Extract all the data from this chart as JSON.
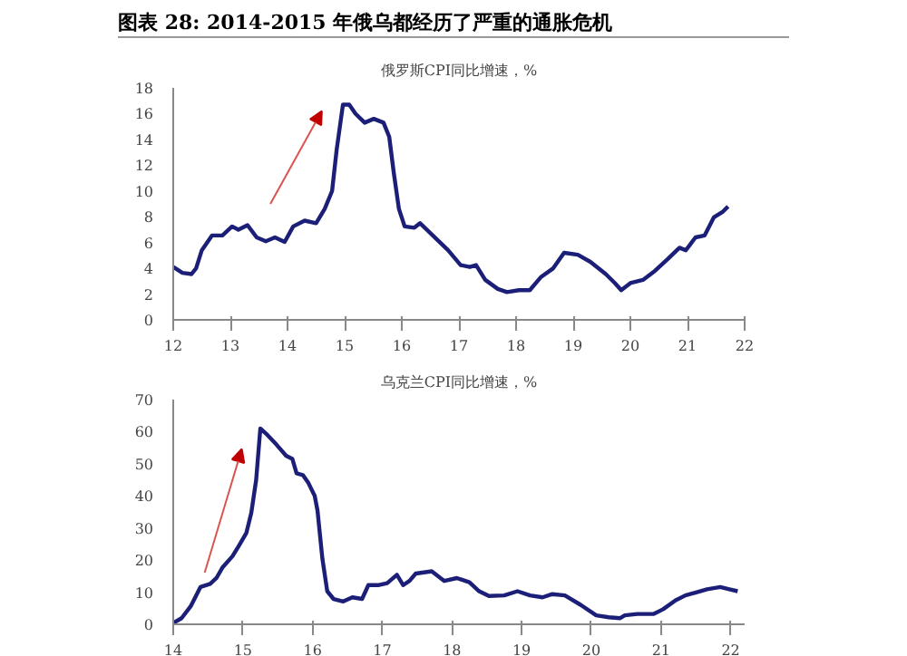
{
  "chart_data": [
    {
      "type": "line",
      "title": "图表 28: 2014-2015 年俄乌都经历了严重的通胀危机",
      "subtitle": "俄罗斯CPI同比增速，%",
      "x": [
        12.0,
        12.16,
        12.32,
        12.4,
        12.5,
        12.68,
        12.86,
        13.03,
        13.14,
        13.3,
        13.46,
        13.62,
        13.78,
        13.95,
        14.1,
        14.3,
        14.5,
        14.65,
        14.78,
        14.86,
        14.97,
        15.08,
        15.19,
        15.35,
        15.51,
        15.68,
        15.78,
        15.86,
        15.95,
        16.05,
        16.22,
        16.32,
        16.6,
        16.81,
        17.03,
        17.19,
        17.3,
        17.46,
        17.68,
        17.84,
        18.05,
        18.24,
        18.43,
        18.65,
        18.84,
        19.08,
        19.3,
        19.57,
        19.73,
        19.84,
        20.0,
        20.22,
        20.43,
        20.65,
        20.86,
        20.97,
        21.14,
        21.3,
        21.46,
        21.62,
        21.71
      ],
      "series": [
        {
          "color": "#1c1f78",
          "values": [
            4.1,
            3.65,
            3.55,
            4.0,
            5.4,
            6.55,
            6.55,
            7.25,
            7.0,
            7.35,
            6.4,
            6.1,
            6.4,
            6.05,
            7.25,
            7.7,
            7.5,
            8.6,
            10.0,
            13.2,
            16.7,
            16.7,
            16.0,
            15.3,
            15.6,
            15.3,
            14.2,
            11.4,
            8.6,
            7.25,
            7.15,
            7.5,
            6.3,
            5.4,
            4.25,
            4.1,
            4.25,
            3.1,
            2.4,
            2.15,
            2.3,
            2.3,
            3.3,
            4.0,
            5.2,
            5.05,
            4.5,
            3.55,
            2.85,
            2.3,
            2.85,
            3.1,
            3.8,
            4.7,
            5.6,
            5.4,
            6.4,
            6.55,
            7.95,
            8.4,
            8.8
          ]
        }
      ],
      "xlim": [
        12,
        22
      ],
      "xticks": [
        12,
        13,
        14,
        15,
        16,
        17,
        18,
        19,
        20,
        21,
        22
      ],
      "ylim": [
        0,
        18
      ],
      "yticks": [
        0,
        2,
        4,
        6,
        8,
        10,
        12,
        14,
        16,
        18
      ],
      "grid": false,
      "line_style": "solid"
    },
    {
      "type": "line",
      "subtitle": "乌克兰CPI同比增速，%",
      "x": [
        14.0,
        14.12,
        14.25,
        14.39,
        14.53,
        14.62,
        14.71,
        14.85,
        14.94,
        15.05,
        15.12,
        15.19,
        15.25,
        15.35,
        15.48,
        15.62,
        15.71,
        15.77,
        15.86,
        15.94,
        16.03,
        16.07,
        16.14,
        16.21,
        16.3,
        16.44,
        16.57,
        16.71,
        16.8,
        16.94,
        17.07,
        17.21,
        17.3,
        17.39,
        17.48,
        17.71,
        17.89,
        18.07,
        18.25,
        18.39,
        18.53,
        18.75,
        18.94,
        19.12,
        19.3,
        19.44,
        19.62,
        19.85,
        20.07,
        20.25,
        20.41,
        20.48,
        20.66,
        20.89,
        21.03,
        21.21,
        21.35,
        21.48,
        21.66,
        21.85,
        21.98,
        22.1
      ],
      "series": [
        {
          "color": "#1c1f78",
          "values": [
            0.4,
            1.9,
            5.6,
            11.6,
            12.6,
            14.4,
            17.8,
            21.2,
            24.4,
            28.5,
            34.7,
            45,
            61,
            59,
            56,
            52.5,
            51.5,
            47,
            46.5,
            44,
            40,
            35.5,
            20.5,
            10.3,
            7.9,
            7.1,
            8.4,
            7.9,
            12.2,
            12.2,
            12.8,
            15.4,
            12.2,
            13.5,
            15.8,
            16.5,
            13.5,
            14.4,
            13.1,
            10.3,
            8.8,
            9,
            10.3,
            9,
            8.4,
            9.4,
            9,
            6,
            2.8,
            2.2,
            1.9,
            2.8,
            3.2,
            3.2,
            4.7,
            7.5,
            9,
            9.8,
            10.9,
            11.6,
            10.9,
            10.3
          ]
        }
      ],
      "xlim": [
        14,
        22.2
      ],
      "xticks": [
        14,
        15,
        16,
        17,
        18,
        19,
        20,
        21,
        22
      ],
      "ylim": [
        0,
        70
      ],
      "yticks": [
        0,
        10,
        20,
        30,
        40,
        50,
        60,
        70
      ],
      "grid": false,
      "line_style": "solid"
    }
  ]
}
